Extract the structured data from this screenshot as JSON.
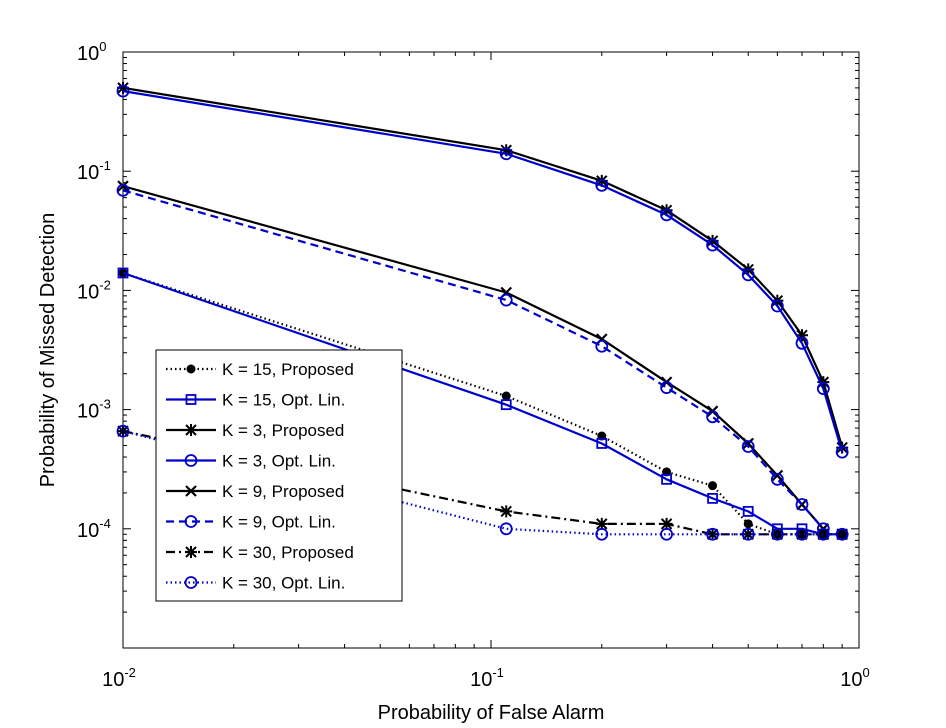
{
  "chart_data": {
    "type": "line",
    "title": "",
    "xlabel": "Probability of False Alarm",
    "ylabel": "Probability of Missed Detection",
    "xscale": "log",
    "yscale": "log",
    "xlim": [
      0.01,
      1
    ],
    "ylim": [
      1e-05,
      1
    ],
    "x_ticks": [
      {
        "base": "10",
        "exp": "-2",
        "value": 0.01
      },
      {
        "base": "10",
        "exp": "-1",
        "value": 0.1
      },
      {
        "base": "10",
        "exp": "0",
        "value": 1
      }
    ],
    "y_ticks": [
      {
        "base": "10",
        "exp": "-4",
        "value": 0.0001
      },
      {
        "base": "10",
        "exp": "-3",
        "value": 0.001
      },
      {
        "base": "10",
        "exp": "-2",
        "value": 0.01
      },
      {
        "base": "10",
        "exp": "-1",
        "value": 0.1
      },
      {
        "base": "10",
        "exp": "0",
        "value": 1
      }
    ],
    "grid": false,
    "legend_position": "lower-left",
    "series": [
      {
        "name": "K = 15, Proposed",
        "color": "#000000",
        "dash": "dotted",
        "marker": "dot",
        "x": [
          0.01,
          0.11,
          0.2,
          0.3,
          0.4,
          0.5,
          0.6,
          0.7,
          0.8,
          0.9
        ],
        "y": [
          0.014,
          0.0013,
          0.0006,
          0.0003,
          0.00023,
          0.00011,
          9e-05,
          9e-05,
          9e-05,
          9e-05
        ]
      },
      {
        "name": "K = 15, Opt. Lin.",
        "color": "#0000cc",
        "dash": "solid",
        "marker": "square",
        "x": [
          0.01,
          0.11,
          0.2,
          0.3,
          0.4,
          0.5,
          0.6,
          0.7,
          0.8,
          0.9
        ],
        "y": [
          0.014,
          0.0011,
          0.00052,
          0.00026,
          0.00018,
          0.00014,
          0.0001,
          0.0001,
          9e-05,
          9e-05
        ]
      },
      {
        "name": "K = 3, Proposed",
        "color": "#000000",
        "dash": "solid",
        "marker": "star",
        "x": [
          0.01,
          0.11,
          0.2,
          0.3,
          0.4,
          0.5,
          0.6,
          0.7,
          0.8,
          0.9
        ],
        "y": [
          0.5,
          0.15,
          0.083,
          0.047,
          0.026,
          0.015,
          0.0082,
          0.0042,
          0.0017,
          0.00048
        ]
      },
      {
        "name": "K = 3, Opt. Lin.",
        "color": "#0000cc",
        "dash": "solid",
        "marker": "circle",
        "x": [
          0.01,
          0.11,
          0.2,
          0.3,
          0.4,
          0.5,
          0.6,
          0.7,
          0.8,
          0.9
        ],
        "y": [
          0.47,
          0.14,
          0.076,
          0.043,
          0.024,
          0.0135,
          0.0074,
          0.0036,
          0.0015,
          0.00044
        ]
      },
      {
        "name": "K = 9, Proposed",
        "color": "#000000",
        "dash": "solid",
        "marker": "x",
        "x": [
          0.01,
          0.11,
          0.2,
          0.3,
          0.4,
          0.5,
          0.6,
          0.7,
          0.8
        ],
        "y": [
          0.075,
          0.0096,
          0.0039,
          0.0017,
          0.00097,
          0.00052,
          0.00028,
          0.00016,
          0.0001
        ]
      },
      {
        "name": "K = 9, Opt. Lin.",
        "color": "#0000cc",
        "dash": "dashed",
        "marker": "circle",
        "x": [
          0.01,
          0.11,
          0.2,
          0.3,
          0.4,
          0.5,
          0.6,
          0.7,
          0.8
        ],
        "y": [
          0.069,
          0.0083,
          0.0034,
          0.00153,
          0.00087,
          0.00049,
          0.00026,
          0.00016,
          0.0001
        ]
      },
      {
        "name": "K = 30, Proposed",
        "color": "#000000",
        "dash": "dashdot",
        "marker": "star",
        "x": [
          0.01,
          0.11,
          0.2,
          0.3,
          0.4,
          0.5,
          0.6,
          0.7,
          0.8,
          0.9
        ],
        "y": [
          0.00066,
          0.00014,
          0.00011,
          0.00011,
          9e-05,
          9e-05,
          9e-05,
          9e-05,
          9e-05,
          9e-05
        ]
      },
      {
        "name": "K = 30, Opt. Lin.",
        "color": "#0000cc",
        "dash": "dotted",
        "marker": "circle",
        "x": [
          0.01,
          0.11,
          0.2,
          0.3,
          0.4,
          0.5,
          0.6,
          0.7,
          0.8,
          0.9
        ],
        "y": [
          0.00066,
          0.0001,
          9e-05,
          9e-05,
          9e-05,
          9e-05,
          9e-05,
          9e-05,
          9e-05,
          9e-05
        ]
      }
    ]
  }
}
